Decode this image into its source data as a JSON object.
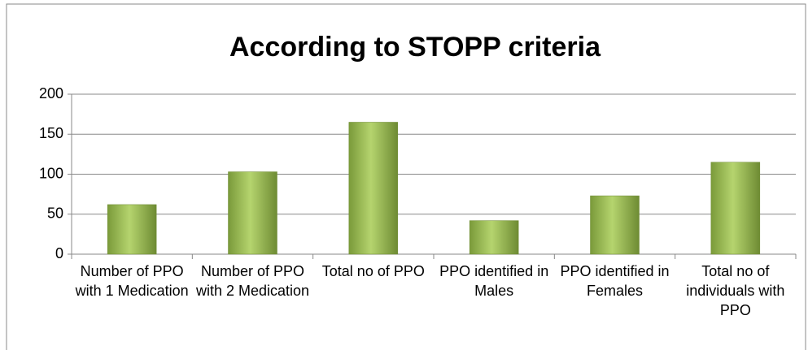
{
  "chart_data": {
    "type": "bar",
    "title": "According to STOPP criteria",
    "categories": [
      "Number of PPO with 1 Medication",
      "Number of PPO with 2 Medication",
      "Total no of PPO",
      "PPO identified in Males",
      "PPO identified in Females",
      "Total no of individuals with PPO"
    ],
    "values": [
      62,
      103,
      165,
      42,
      73,
      115
    ],
    "color": "#9bbb59",
    "ylim": [
      0,
      200
    ],
    "yticks": [
      0,
      50,
      100,
      150,
      200
    ],
    "grid": true
  }
}
